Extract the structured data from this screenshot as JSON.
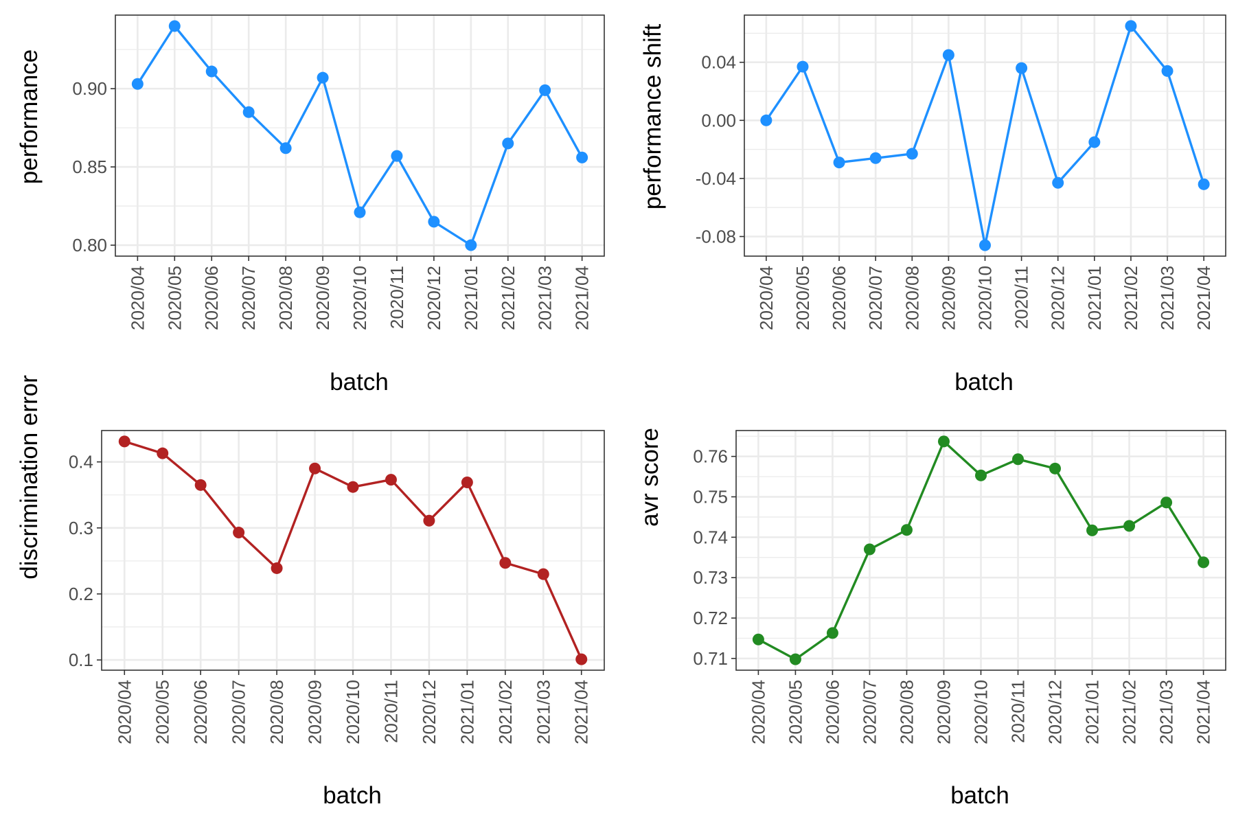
{
  "chart_data": [
    {
      "type": "line",
      "xlabel": "batch",
      "ylabel": "performance",
      "categories": [
        "2020/04",
        "2020/05",
        "2020/06",
        "2020/07",
        "2020/08",
        "2020/09",
        "2020/10",
        "2020/11",
        "2020/12",
        "2021/01",
        "2021/02",
        "2021/03",
        "2021/04"
      ],
      "values": [
        0.903,
        0.94,
        0.911,
        0.885,
        0.862,
        0.907,
        0.821,
        0.857,
        0.815,
        0.8,
        0.865,
        0.899,
        0.856
      ],
      "ylim": [
        0.793,
        0.947
      ],
      "yticks": [
        0.8,
        0.85,
        0.9
      ],
      "ytick_labels": [
        "0.80",
        "0.85",
        "0.90"
      ],
      "color": "#1e90ff",
      "grid": true
    },
    {
      "type": "line",
      "xlabel": "batch",
      "ylabel": "performance shift",
      "categories": [
        "2020/04",
        "2020/05",
        "2020/06",
        "2020/07",
        "2020/08",
        "2020/09",
        "2020/10",
        "2020/11",
        "2020/12",
        "2021/01",
        "2021/02",
        "2021/03",
        "2021/04"
      ],
      "values": [
        0.0,
        0.037,
        -0.029,
        -0.026,
        -0.023,
        0.045,
        -0.086,
        0.036,
        -0.043,
        -0.015,
        0.065,
        0.034,
        -0.044
      ],
      "ylim": [
        -0.0935,
        0.0725
      ],
      "yticks": [
        -0.08,
        -0.04,
        0.0,
        0.04
      ],
      "ytick_labels": [
        "-0.08",
        "-0.04",
        "0.00",
        "0.04"
      ],
      "color": "#1e90ff",
      "grid": true
    },
    {
      "type": "line",
      "xlabel": "batch",
      "ylabel": "discrimination error",
      "categories": [
        "2020/04",
        "2020/05",
        "2020/06",
        "2020/07",
        "2020/08",
        "2020/09",
        "2020/10",
        "2020/11",
        "2020/12",
        "2021/01",
        "2021/02",
        "2021/03",
        "2021/04"
      ],
      "values": [
        0.431,
        0.413,
        0.365,
        0.293,
        0.239,
        0.39,
        0.362,
        0.373,
        0.311,
        0.369,
        0.247,
        0.23,
        0.101
      ],
      "ylim": [
        0.0845,
        0.4475
      ],
      "yticks": [
        0.1,
        0.2,
        0.3,
        0.4
      ],
      "ytick_labels": [
        "0.1",
        "0.2",
        "0.3",
        "0.4"
      ],
      "color": "#b22222",
      "grid": true
    },
    {
      "type": "line",
      "xlabel": "batch",
      "ylabel": "avr score",
      "categories": [
        "2020/04",
        "2020/05",
        "2020/06",
        "2020/07",
        "2020/08",
        "2020/09",
        "2020/10",
        "2020/11",
        "2020/12",
        "2021/01",
        "2021/02",
        "2021/03",
        "2021/04"
      ],
      "values": [
        0.7147,
        0.7098,
        0.7163,
        0.737,
        0.7418,
        0.7637,
        0.7553,
        0.7593,
        0.757,
        0.7417,
        0.7428,
        0.7486,
        0.7338
      ],
      "ylim": [
        0.7071,
        0.7664
      ],
      "yticks": [
        0.71,
        0.72,
        0.73,
        0.74,
        0.75,
        0.76
      ],
      "ytick_labels": [
        "0.71",
        "0.72",
        "0.73",
        "0.74",
        "0.75",
        "0.76"
      ],
      "color": "#228b22",
      "grid": true
    }
  ]
}
